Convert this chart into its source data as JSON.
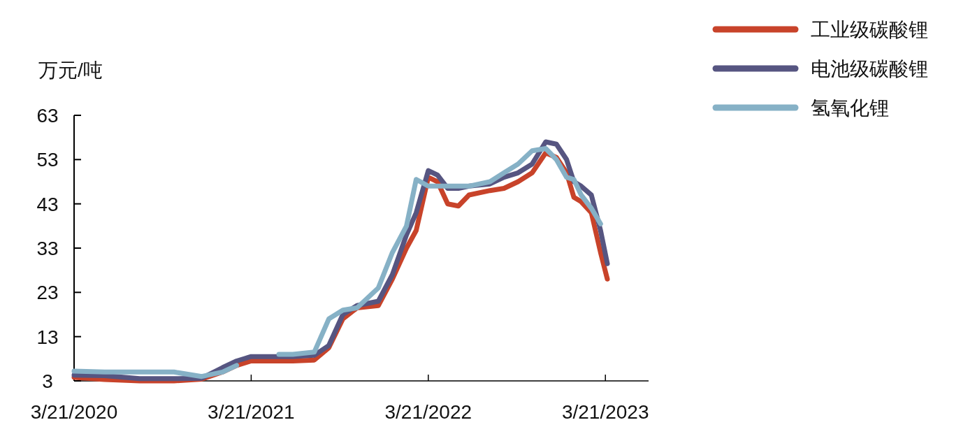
{
  "chart_data": {
    "type": "line",
    "ylabel": "万元/吨",
    "legend": "top right",
    "grid": false,
    "marker": "none",
    "line_style": "solid",
    "xlim": [
      "2020-03-21",
      "2023-06-18"
    ],
    "xticks": [
      {
        "value": "2020-03-21",
        "label": "3/21/2020"
      },
      {
        "value": "2021-03-21",
        "label": "3/21/2021"
      },
      {
        "value": "2022-03-21",
        "label": "3/21/2022"
      },
      {
        "value": "2023-03-21",
        "label": "3/21/2023"
      }
    ],
    "ylim": [
      3,
      63
    ],
    "yticks": [
      3,
      13,
      23,
      33,
      43,
      53,
      63
    ],
    "x": [
      "2020-03-21",
      "2020-05-23",
      "2020-08-03",
      "2020-10-13",
      "2020-12-09",
      "2021-01-21",
      "2021-02-19",
      "2021-03-21",
      "2021-05-17",
      "2021-06-15",
      "2021-07-29",
      "2021-08-28",
      "2021-09-26",
      "2021-10-25",
      "2021-12-08",
      "2022-01-06",
      "2022-02-04",
      "2022-02-24",
      "2022-03-21",
      "2022-04-09",
      "2022-04-30",
      "2022-05-22",
      "2022-06-13",
      "2022-07-26",
      "2022-08-24",
      "2022-09-22",
      "2022-10-21",
      "2022-11-18",
      "2022-12-10",
      "2022-12-31",
      "2023-01-15",
      "2023-01-30",
      "2023-02-20",
      "2023-03-11",
      "2023-03-25"
    ],
    "series": [
      {
        "name": "工业级碳酸锂",
        "color": "#c8432a",
        "values": [
          3.8,
          3.3,
          3.0,
          3.0,
          3.4,
          5,
          6.5,
          7.5,
          7.5,
          7.5,
          7.7,
          10.5,
          17,
          19.5,
          20,
          26,
          33,
          37,
          49,
          48,
          43,
          42.5,
          45,
          46,
          46.5,
          48,
          50,
          54.5,
          53.5,
          50,
          44.5,
          43.5,
          41,
          32,
          26
        ]
      },
      {
        "name": "电池级碳酸锂",
        "color": "#565581",
        "values": [
          4.3,
          4.2,
          3.5,
          3.5,
          3.6,
          6,
          7.5,
          8.5,
          8.5,
          8.5,
          8.8,
          11,
          18,
          20,
          21,
          27,
          36,
          41,
          50.5,
          49.5,
          46.5,
          46.5,
          47,
          47.5,
          49,
          50,
          52,
          57,
          56.5,
          53,
          48,
          47,
          45,
          37,
          29.5
        ]
      },
      {
        "name": "氢氧化锂",
        "color": "#86b1c6",
        "values": [
          5.2,
          5,
          5,
          5,
          4,
          5,
          6.5,
          null,
          9,
          9,
          9.5,
          17,
          19,
          19.5,
          24,
          32,
          38,
          48.5,
          47,
          47,
          47,
          47,
          47,
          48,
          50,
          52,
          55,
          55.5,
          53,
          49,
          48.5,
          45,
          42,
          38.5,
          null
        ]
      }
    ]
  }
}
